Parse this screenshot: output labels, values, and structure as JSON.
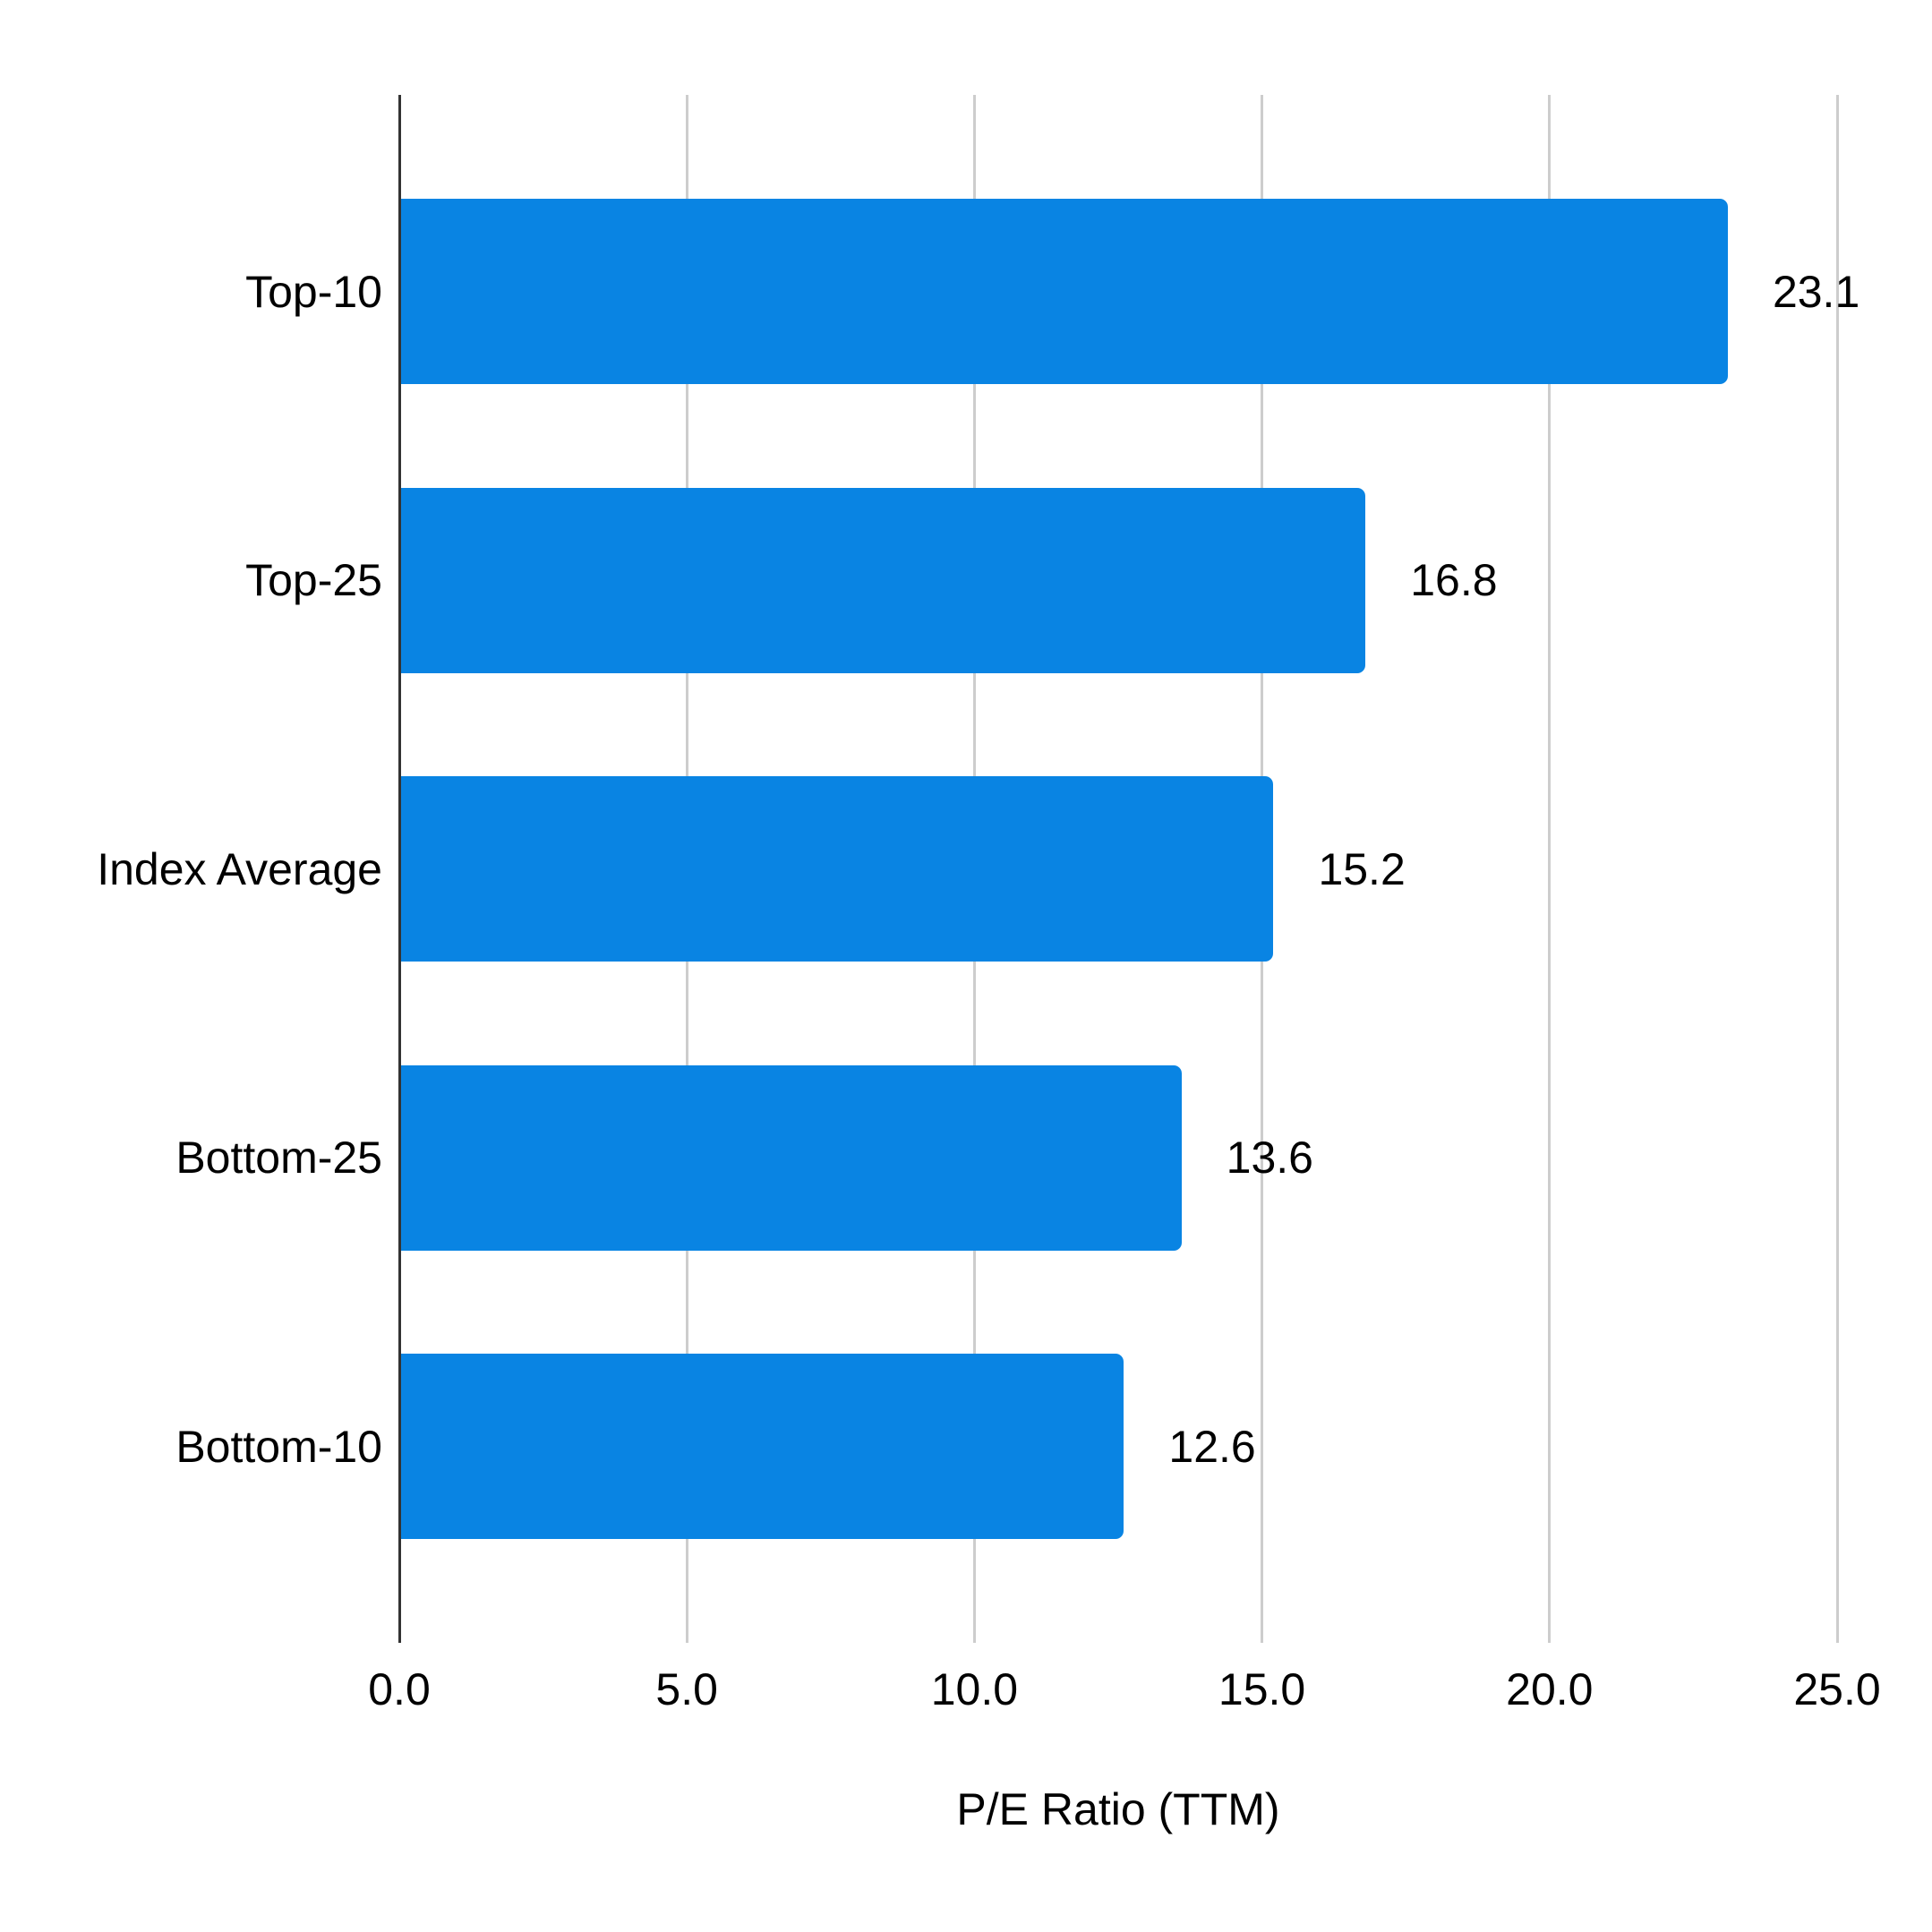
{
  "chart_data": {
    "type": "bar",
    "orientation": "horizontal",
    "title": "",
    "xlabel": "P/E Ratio (TTM)",
    "ylabel": "",
    "categories": [
      "Top-10",
      "Top-25",
      "Index Average",
      "Bottom-25",
      "Bottom-10"
    ],
    "values": [
      23.1,
      16.8,
      15.2,
      13.6,
      12.6
    ],
    "value_labels": [
      "23.1",
      "16.8",
      "15.2",
      "13.6",
      "12.6"
    ],
    "xlim": [
      0,
      25
    ],
    "xticks": [
      0,
      5,
      10,
      15,
      20,
      25
    ],
    "xtick_labels": [
      "0.0",
      "5.0",
      "10.0",
      "15.0",
      "20.0",
      "25.0"
    ],
    "grid": true,
    "legend": false,
    "colors": {
      "bar": "#0984E3",
      "gridline": "#CDCDCD",
      "axis_line": "#333333",
      "text": "#000000",
      "background": "#FFFFFF"
    }
  }
}
